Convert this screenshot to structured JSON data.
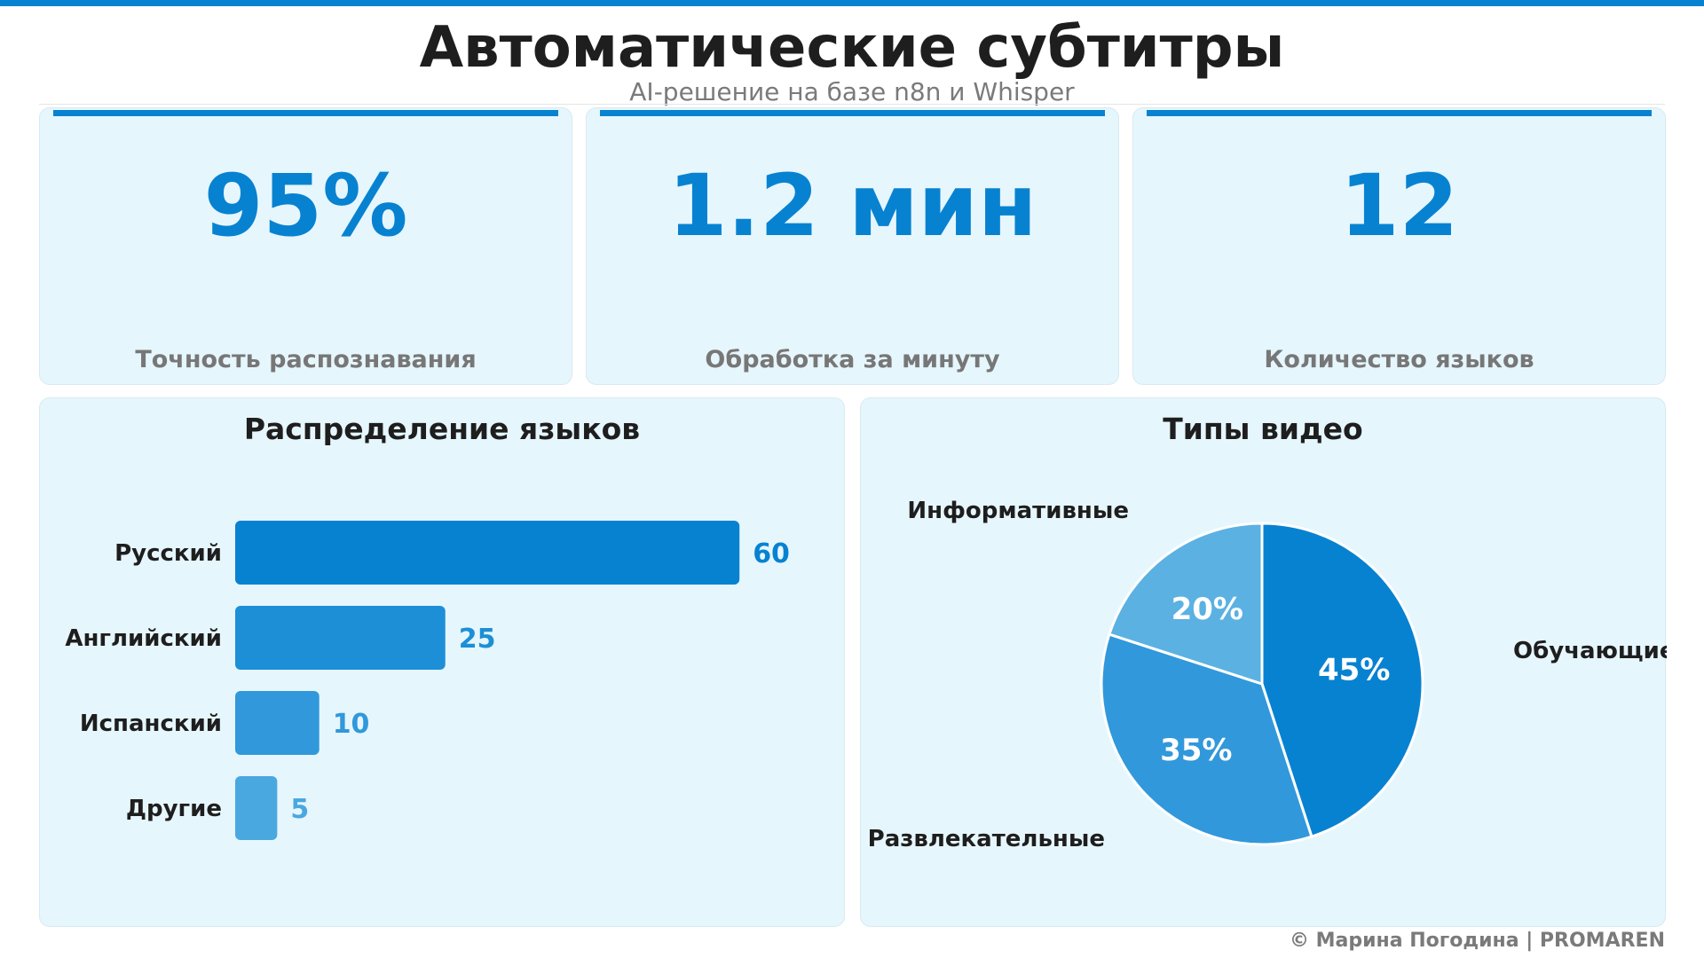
{
  "header": {
    "title": "Автоматические субтитры",
    "subtitle": "AI-решение на базе n8n и Whisper"
  },
  "stats": [
    {
      "value": "95%",
      "label": "Точность распознавания"
    },
    {
      "value": "1.2 мин",
      "label": "Обработка за минуту"
    },
    {
      "value": "12",
      "label": "Количество языков"
    }
  ],
  "chart_data": [
    {
      "type": "bar",
      "orientation": "horizontal",
      "title": "Распределение языков",
      "categories": [
        "Русский",
        "Английский",
        "Испанский",
        "Другие"
      ],
      "values": [
        60,
        25,
        10,
        5
      ],
      "value_labels": [
        "60",
        "25",
        "10",
        "5"
      ],
      "colors": [
        "#0782d1",
        "#1c8fd6",
        "#3198db",
        "#4aa8e0"
      ],
      "grid": false
    },
    {
      "type": "pie",
      "title": "Типы видео",
      "labels": [
        "Обучающие",
        "Развлекательные",
        "Информативные"
      ],
      "values": [
        45,
        35,
        20
      ],
      "value_labels": [
        "45%",
        "35%",
        "20%"
      ],
      "colors": [
        "#0782d1",
        "#3198db",
        "#5bb1e2"
      ],
      "start_angle": "top",
      "direction": "clockwise"
    }
  ],
  "footer": {
    "credit": "© Марина Погодина | PROMAREN"
  },
  "colors": {
    "accent": "#0782d1",
    "card_background": "#e6f6fd",
    "muted_text": "#7a7a7a"
  }
}
